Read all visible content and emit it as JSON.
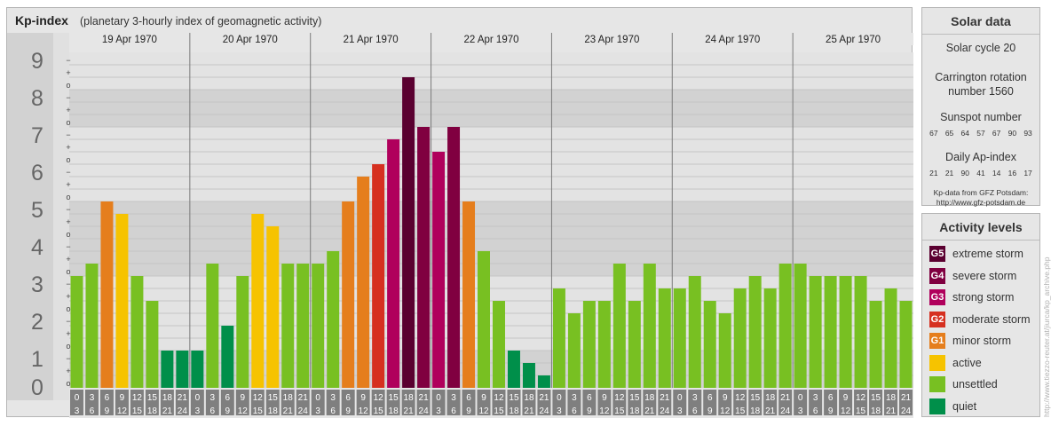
{
  "title": {
    "main": "Kp-index",
    "sub": "(planetary 3-hourly index of geomagnetic activity)"
  },
  "chart_data": {
    "type": "bar",
    "title": "Kp-index",
    "subtitle": "(planetary 3-hourly index of geomagnetic activity)",
    "ylim": [
      0,
      9
    ],
    "y_ticks": [
      "0",
      "1",
      "2",
      "3",
      "4",
      "5",
      "6",
      "7",
      "8",
      "9"
    ],
    "y_sub_marks": [
      "o",
      "+",
      "−"
    ],
    "days": [
      "19 Apr 1970",
      "20 Apr 1970",
      "21 Apr 1970",
      "22 Apr 1970",
      "23 Apr 1970",
      "24 Apr 1970",
      "25 Apr 1970"
    ],
    "interval_labels": [
      [
        "0",
        "3"
      ],
      [
        "3",
        "6"
      ],
      [
        "6",
        "9"
      ],
      [
        "9",
        "12"
      ],
      [
        "12",
        "15"
      ],
      [
        "15",
        "18"
      ],
      [
        "18",
        "21"
      ],
      [
        "21",
        "24"
      ]
    ],
    "values": [
      [
        3,
        3.333,
        5,
        4.667,
        3,
        2.333,
        1,
        1
      ],
      [
        1,
        3.333,
        1.667,
        3,
        4.667,
        4.333,
        3.333,
        3.333
      ],
      [
        3.333,
        3.667,
        5,
        5.667,
        6,
        6.667,
        8.333,
        7
      ],
      [
        6.333,
        7,
        5,
        3.667,
        2.333,
        1,
        0.667,
        0.333
      ],
      [
        2.667,
        2,
        2.333,
        2.333,
        3.333,
        2.333,
        3.333,
        2.667
      ],
      [
        2.667,
        3,
        2.333,
        2,
        2.667,
        3,
        2.667,
        3.333
      ],
      [
        3.333,
        3,
        3,
        3,
        3,
        2.333,
        2.667,
        2.333
      ]
    ]
  },
  "solar": {
    "heading": "Solar data",
    "cycle": "Solar cycle 20",
    "carrington_1": "Carrington rotation",
    "carrington_2": "number 1560",
    "sunspot_heading": "Sunspot number",
    "sunspot_values": [
      "67",
      "65",
      "64",
      "57",
      "67",
      "90",
      "93"
    ],
    "ap_heading": "Daily Ap-index",
    "ap_values": [
      "21",
      "21",
      "90",
      "41",
      "14",
      "16",
      "17"
    ],
    "credit_1": "Kp-data from GFZ Potsdam:",
    "credit_2": "http://www.gfz-potsdam.de"
  },
  "levels": {
    "heading": "Activity levels",
    "items": [
      {
        "code": "G5",
        "label": "extreme storm",
        "color": "#5a0030"
      },
      {
        "code": "G4",
        "label": "severe storm",
        "color": "#800040"
      },
      {
        "code": "G3",
        "label": "strong storm",
        "color": "#b0005c"
      },
      {
        "code": "G2",
        "label": "moderate storm",
        "color": "#d63020"
      },
      {
        "code": "G1",
        "label": "minor storm",
        "color": "#e57e1d"
      },
      {
        "code": "",
        "label": "active",
        "color": "#f6c300"
      },
      {
        "code": "",
        "label": "unsettled",
        "color": "#78c022"
      },
      {
        "code": "",
        "label": "quiet",
        "color": "#008f4a"
      }
    ]
  },
  "watermark": "http://www.tiezzo-reuter.at/jiurca/kp_archive.php"
}
